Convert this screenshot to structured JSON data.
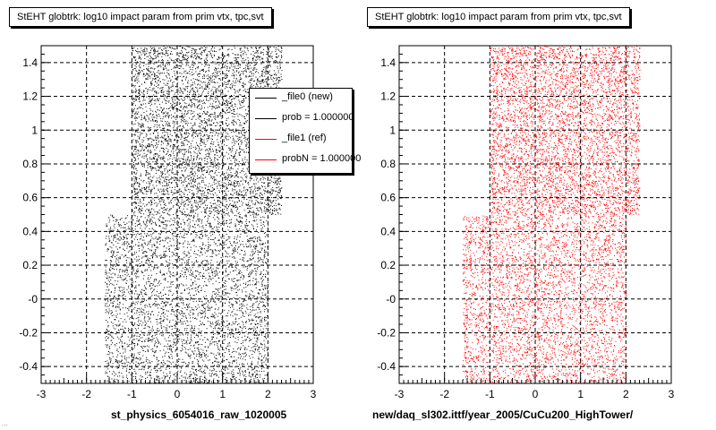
{
  "colors": {
    "series_new": "#000000",
    "series_ref": "#ff0000",
    "background": "#ffffff"
  },
  "footnote": "...",
  "legend": [
    {
      "label": "_file0 (new)",
      "color": "#000000"
    },
    {
      "label": "prob = 1.000000",
      "color": "#000000"
    },
    {
      "label": "_file1 (ref)",
      "color": "#ff0000"
    },
    {
      "label": "probN = 1.000000",
      "color": "#ff0000"
    }
  ],
  "chart_data": [
    {
      "type": "scatter",
      "title": "StEHT globtrk: log10 impact param from prim vtx, tpc,svt",
      "xlabel": "st_physics_6054016_raw_1020005",
      "ylabel": "",
      "xlim": [
        -3,
        3
      ],
      "ylim": [
        -0.5,
        1.5
      ],
      "xticks": [
        "-3",
        "-2",
        "-1",
        "0",
        "1",
        "2",
        "3"
      ],
      "yticks": [
        "-0.4",
        "-0.2",
        "-0",
        "0.2",
        "0.4",
        "0.6",
        "0.8",
        "1",
        "1.2",
        "1.4"
      ],
      "grid": true,
      "color": "#000000",
      "series_name": "_file0 (new)",
      "density_regions": [
        {
          "xmin": -1.6,
          "xmax": 2.0,
          "ymin": -0.5,
          "ymax": 0.5,
          "weight": 0.45
        },
        {
          "xmin": -1.0,
          "xmax": 2.3,
          "ymin": 0.5,
          "ymax": 1.5,
          "weight": 0.55
        }
      ]
    },
    {
      "type": "scatter",
      "title": "StEHT globtrk: log10 impact param from prim vtx, tpc,svt",
      "xlabel": "new/daq_sl302.ittf/year_2005/CuCu200_HighTower/",
      "ylabel": "",
      "xlim": [
        -3,
        3
      ],
      "ylim": [
        -0.5,
        1.5
      ],
      "xticks": [
        "-3",
        "-2",
        "-1",
        "0",
        "1",
        "2",
        "3"
      ],
      "yticks": [
        "-0.4",
        "-0.2",
        "-0",
        "0.2",
        "0.4",
        "0.6",
        "0.8",
        "1",
        "1.2",
        "1.4"
      ],
      "grid": true,
      "color": "#ff0000",
      "series_name": "_file1 (ref)",
      "density_regions": [
        {
          "xmin": -1.6,
          "xmax": 2.0,
          "ymin": -0.5,
          "ymax": 0.5,
          "weight": 0.45
        },
        {
          "xmin": -1.0,
          "xmax": 2.3,
          "ymin": 0.5,
          "ymax": 1.5,
          "weight": 0.55
        }
      ]
    }
  ]
}
